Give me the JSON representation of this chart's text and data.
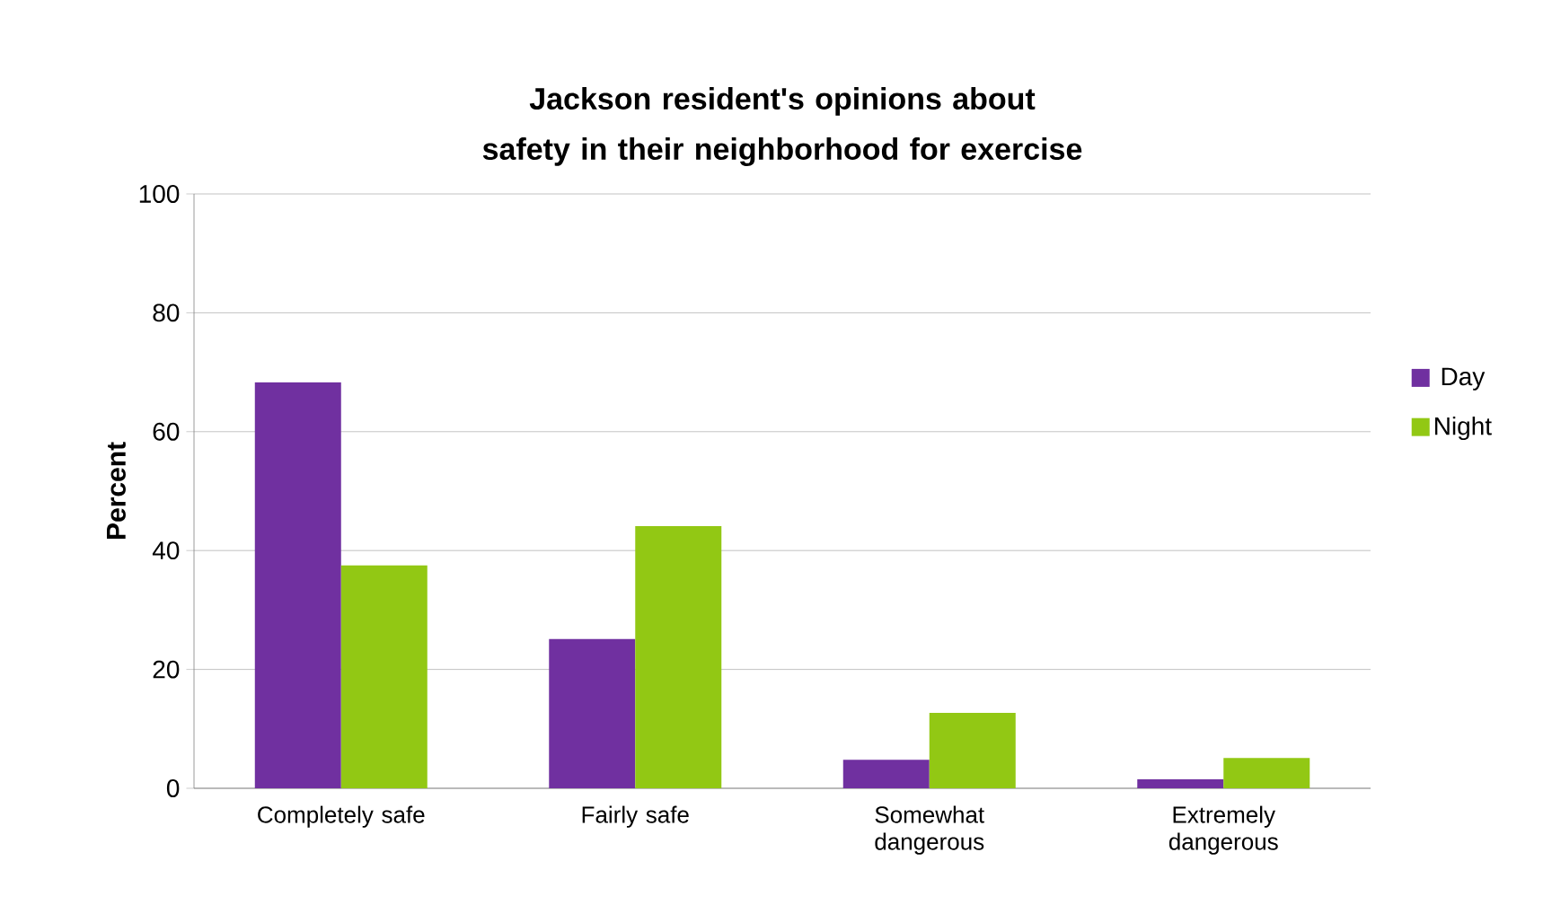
{
  "chart_data": {
    "type": "bar",
    "title": "Jackson resident's opinions about safety in their neighborhood for exercise",
    "ylabel": "Percent",
    "categories": [
      "Completely safe",
      "Fairly safe",
      "Somewhat dangerous",
      "Extremely dangerous"
    ],
    "series": [
      {
        "name": "Day",
        "color": "#7030a0",
        "values": [
          68.3,
          25.1,
          4.8,
          1.5
        ]
      },
      {
        "name": "Night",
        "color": "#92c814",
        "values": [
          37.5,
          44.1,
          12.7,
          5.1
        ]
      }
    ],
    "ylim": [
      0,
      100
    ],
    "yticks": [
      0,
      20,
      40,
      60,
      80,
      100
    ],
    "grid": "y",
    "legend": "right"
  }
}
